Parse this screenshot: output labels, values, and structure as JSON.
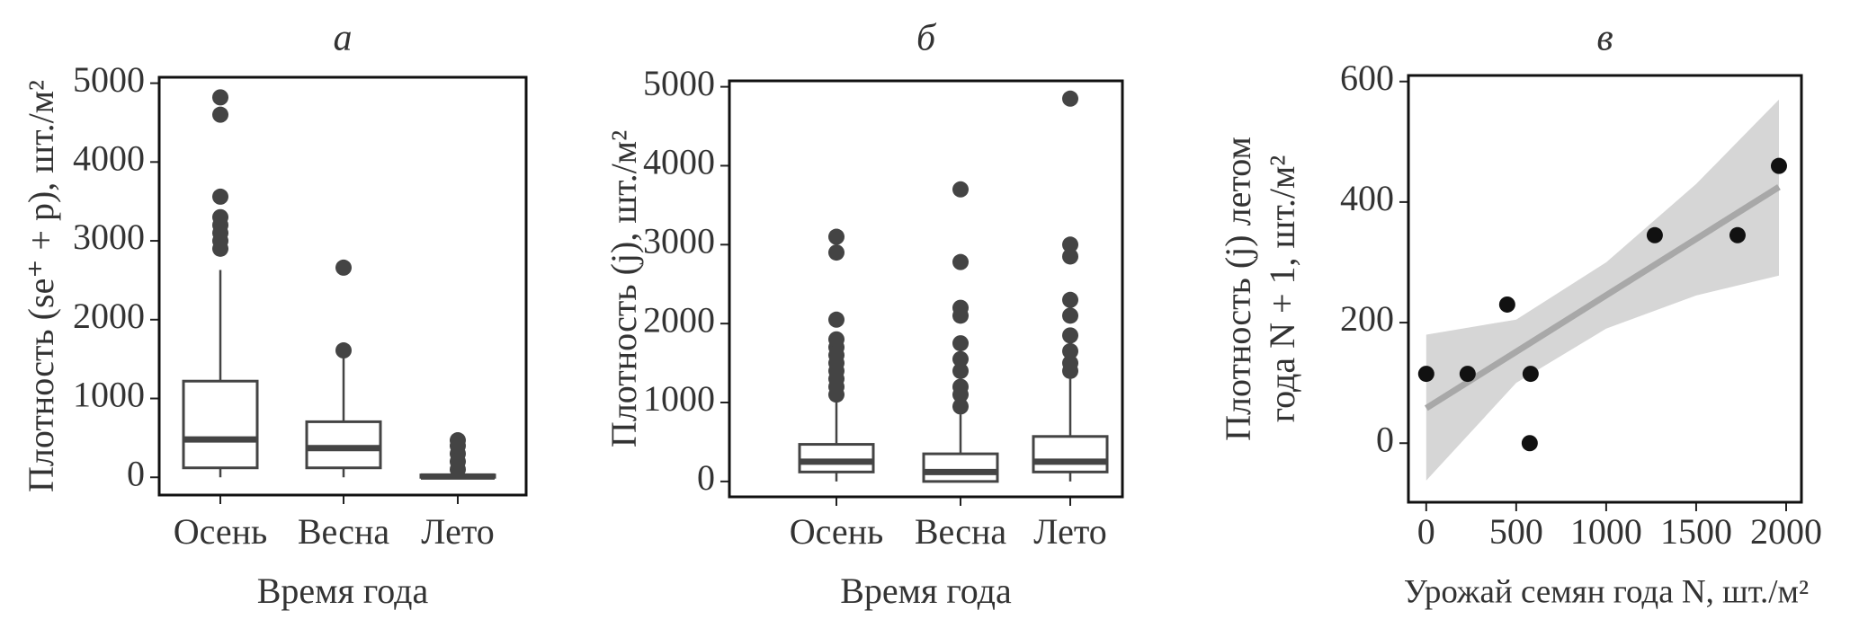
{
  "chart_data": [
    {
      "type": "box",
      "title": "а",
      "ylabel": "Плотность (se⁺ + p), шт./м²",
      "xlabel": "Время года",
      "categories": [
        "Осень",
        "Весна",
        "Лето"
      ],
      "color": "#444444",
      "ylim": [
        -225,
        5075
      ],
      "yticks": [
        0,
        1000,
        2000,
        3000,
        4000,
        5000
      ],
      "boxes": [
        {
          "low": 0,
          "q1": 120,
          "median": 480,
          "q3": 1220,
          "high": 2630,
          "outliers": [
            2900,
            3000,
            3100,
            3200,
            3300,
            3560,
            4600,
            4820
          ]
        },
        {
          "low": 0,
          "q1": 120,
          "median": 370,
          "q3": 705,
          "high": 1510,
          "outliers": [
            1610,
            2660
          ]
        },
        {
          "low": 0,
          "q1": 0,
          "median": 10,
          "q3": 30,
          "high": 30,
          "outliers": [
            100,
            200,
            300,
            400,
            470
          ]
        }
      ]
    },
    {
      "type": "box",
      "title": "б",
      "ylabel": "Плотность (j), шт./м²",
      "xlabel": "Время года",
      "categories": [
        "Осень",
        "Весна",
        "Лето"
      ],
      "color": "#444444",
      "ylim": [
        -195,
        5075
      ],
      "yticks": [
        0,
        1000,
        2000,
        3000,
        4000,
        5000
      ],
      "boxes": [
        {
          "low": 0,
          "q1": 120,
          "median": 250,
          "q3": 470,
          "high": 1000,
          "outliers": [
            1100,
            1200,
            1300,
            1400,
            1500,
            1600,
            1700,
            1800,
            2050,
            2900,
            3100
          ]
        },
        {
          "low": 0,
          "q1": 0,
          "median": 120,
          "q3": 350,
          "high": 850,
          "outliers": [
            950,
            1100,
            1200,
            1400,
            1550,
            1750,
            2100,
            2200,
            2780,
            3700
          ]
        },
        {
          "low": 0,
          "q1": 120,
          "median": 250,
          "q3": 570,
          "high": 1300,
          "outliers": [
            1400,
            1500,
            1650,
            1850,
            2100,
            2300,
            2850,
            3000,
            4850
          ]
        }
      ]
    },
    {
      "type": "scatter",
      "title": "в",
      "ylabel": [
        "Плотность (j) летом",
        "года N + 1, шт./м²"
      ],
      "xlabel": "Урожай семян года N, шт./м²",
      "color": "#111111",
      "fit_color": "#a8a8a8",
      "band_color": "#d6d6d6",
      "xlim": [
        -99,
        2085
      ],
      "xticks": [
        0,
        500,
        1000,
        1500,
        2000
      ],
      "ylim": [
        -98,
        610
      ],
      "yticks": [
        0,
        200,
        400,
        600
      ],
      "x": [
        0,
        230,
        450,
        580,
        575,
        1270,
        1730,
        1960
      ],
      "y": [
        115,
        115,
        230,
        115,
        0,
        345,
        345,
        460
      ],
      "fit": {
        "x": [
          0,
          1960
        ],
        "y": [
          58,
          425
        ]
      },
      "band": {
        "x": [
          0,
          500,
          1000,
          1500,
          1960
        ],
        "upper": [
          180,
          205,
          300,
          430,
          570
        ],
        "lower": [
          -62,
          100,
          190,
          245,
          278
        ]
      }
    }
  ]
}
